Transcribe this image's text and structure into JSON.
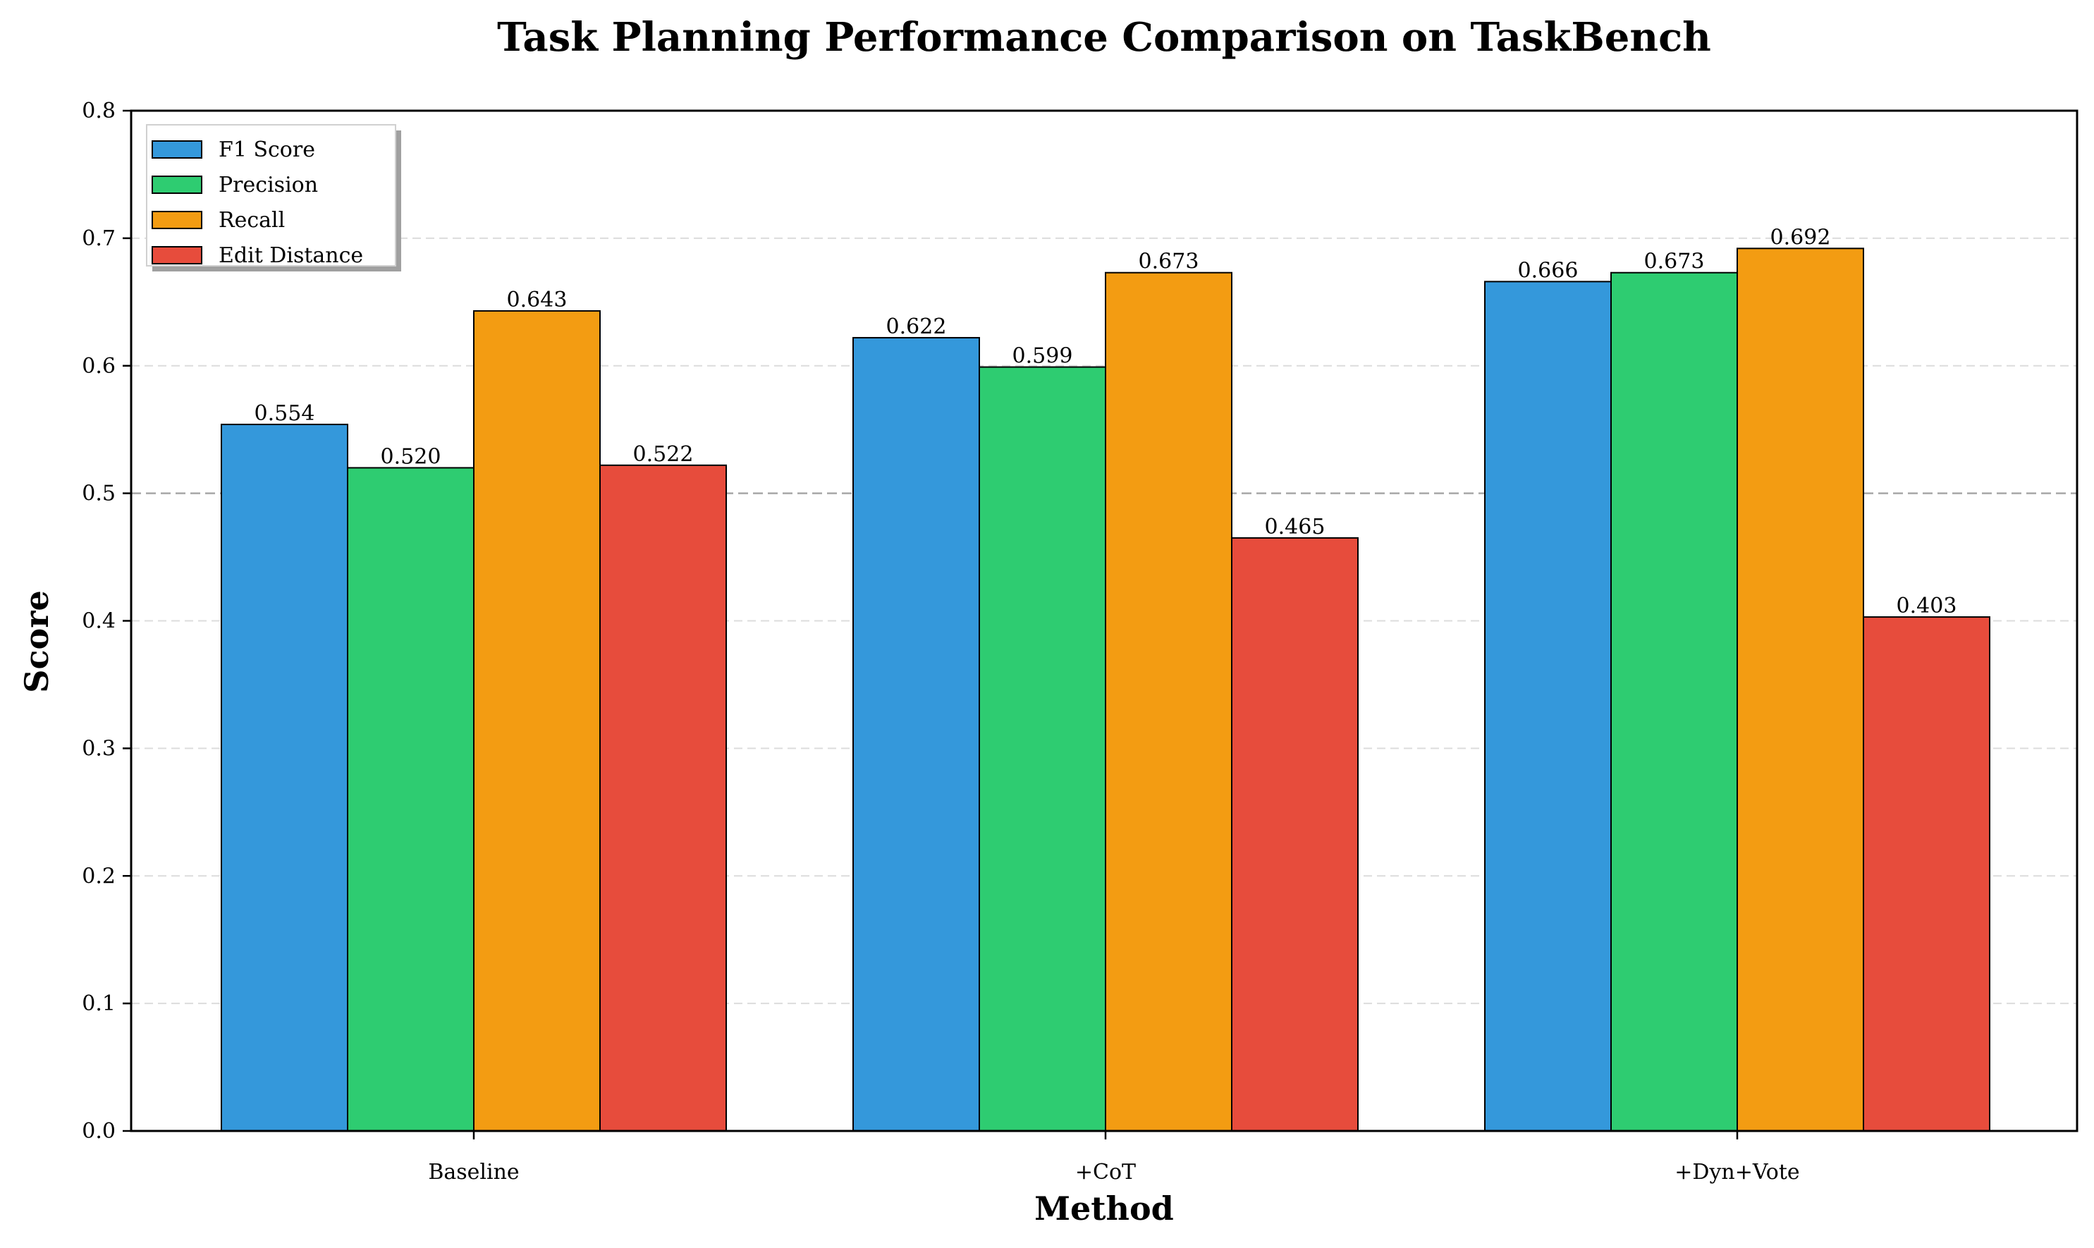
{
  "chart_data": {
    "type": "bar",
    "title": "Task Planning Performance Comparison on TaskBench",
    "xlabel": "Method",
    "ylabel": "Score",
    "categories": [
      "Baseline",
      "+CoT",
      "+Dyn+Vote"
    ],
    "ylim": [
      0,
      0.8
    ],
    "yticks": [
      "0.0",
      "0.1",
      "0.2",
      "0.3",
      "0.4",
      "0.5",
      "0.6",
      "0.7",
      "0.8"
    ],
    "grid": "horizontal dashed",
    "reference_line": 0.5,
    "legend_position": "top-left",
    "series": [
      {
        "name": "F1 Score",
        "color": "#3498db",
        "values": [
          0.554,
          0.622,
          0.666
        ],
        "labels": [
          "0.554",
          "0.622",
          "0.666"
        ]
      },
      {
        "name": "Precision",
        "color": "#2ecc71",
        "values": [
          0.52,
          0.599,
          0.673
        ],
        "labels": [
          "0.520",
          "0.599",
          "0.673"
        ]
      },
      {
        "name": "Recall",
        "color": "#f39c12",
        "values": [
          0.643,
          0.673,
          0.692
        ],
        "labels": [
          "0.643",
          "0.673",
          "0.692"
        ]
      },
      {
        "name": "Edit Distance",
        "color": "#e74c3c",
        "values": [
          0.522,
          0.465,
          0.403
        ],
        "labels": [
          "0.522",
          "0.465",
          "0.403"
        ]
      }
    ]
  }
}
